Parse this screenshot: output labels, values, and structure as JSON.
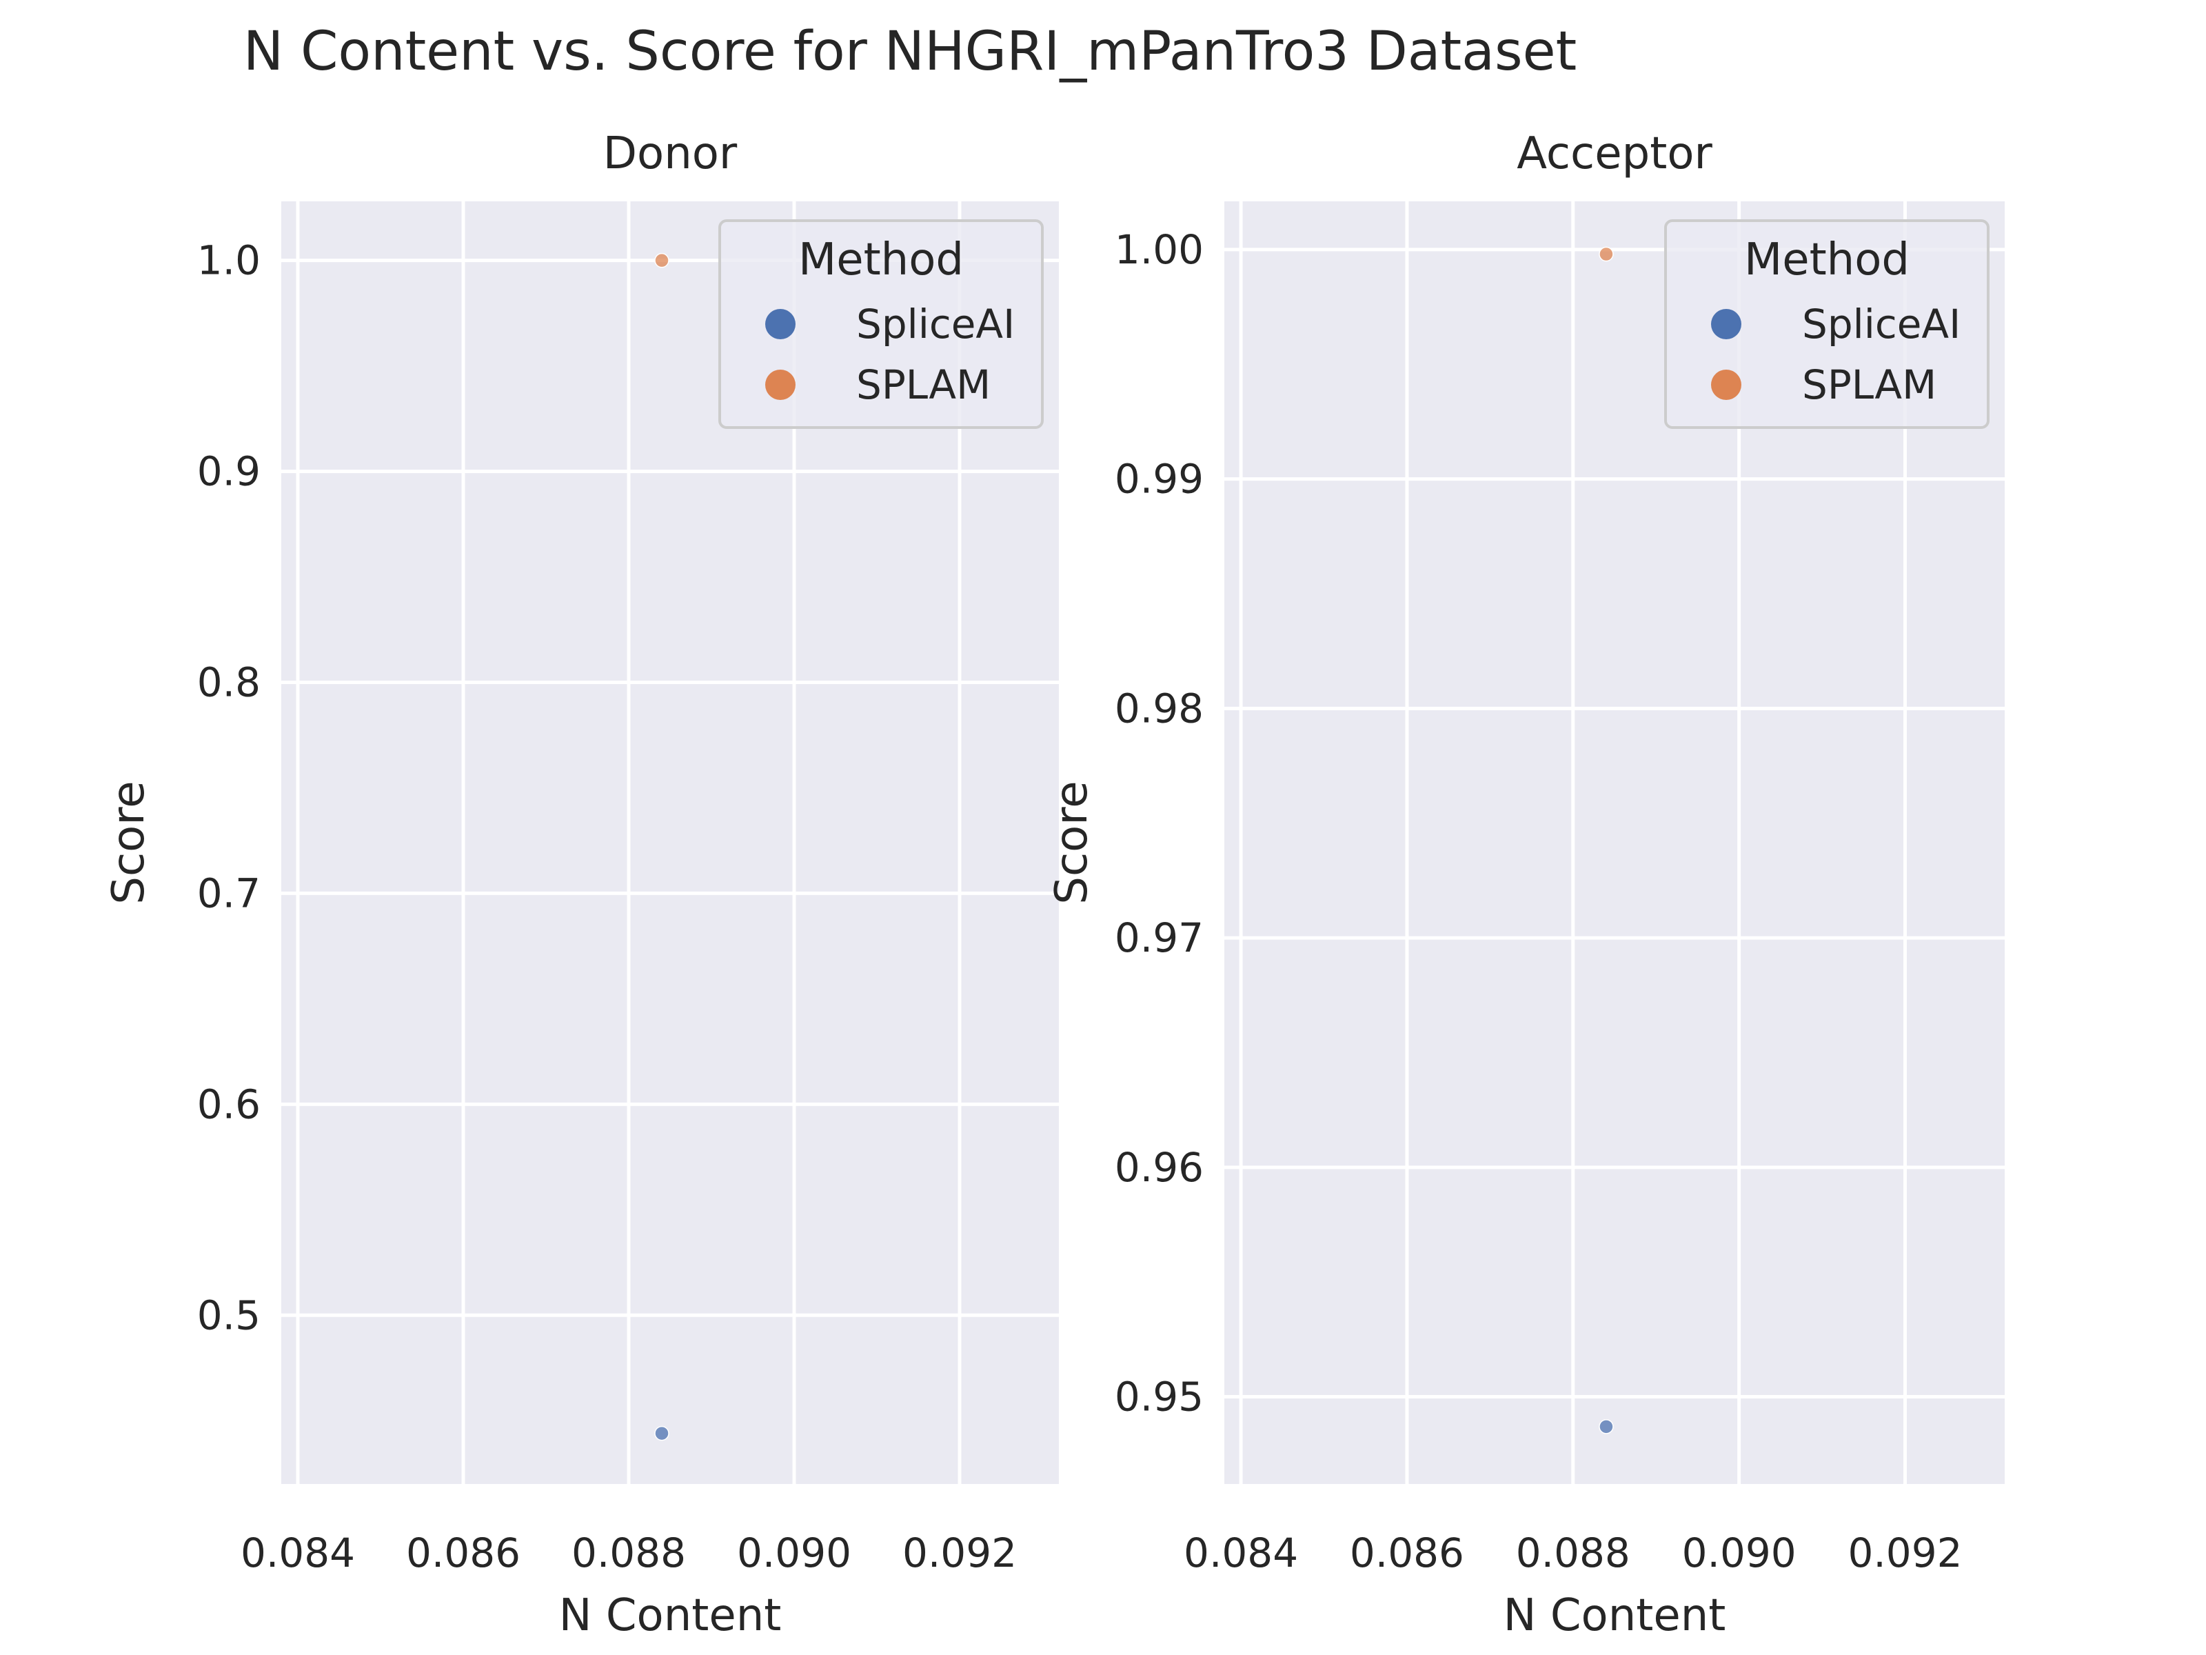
{
  "title": "N Content vs. Score for NHGRI_mPanTro3 Dataset",
  "chart_data": [
    {
      "type": "scatter",
      "subtitle": "Donor",
      "xlabel": "N Content",
      "ylabel": "Score",
      "xlim": [
        0.0838,
        0.0932
      ],
      "ylim": [
        0.42,
        1.028
      ],
      "xticks": [
        0.084,
        0.086,
        0.088,
        0.09,
        0.092
      ],
      "xtick_labels": [
        "0.084",
        "0.086",
        "0.088",
        "0.090",
        "0.092"
      ],
      "yticks": [
        0.5,
        0.6,
        0.7,
        0.8,
        0.9,
        1.0
      ],
      "ytick_labels": [
        "0.5",
        "0.6",
        "0.7",
        "0.8",
        "0.9",
        "1.0"
      ],
      "grid": true,
      "legend": {
        "title": "Method",
        "placement": "top-right"
      },
      "series": [
        {
          "name": "SpliceAI",
          "color": "#4c72b0",
          "points": [
            {
              "x": 0.0884,
              "y": 0.444
            }
          ]
        },
        {
          "name": "SPLAM",
          "color": "#dd8452",
          "points": [
            {
              "x": 0.0884,
              "y": 1.0
            }
          ]
        }
      ]
    },
    {
      "type": "scatter",
      "subtitle": "Acceptor",
      "xlabel": "N Content",
      "ylabel": "Score",
      "xlim": [
        0.0838,
        0.0932
      ],
      "ylim": [
        0.9462,
        1.0021
      ],
      "xticks": [
        0.084,
        0.086,
        0.088,
        0.09,
        0.092
      ],
      "xtick_labels": [
        "0.084",
        "0.086",
        "0.088",
        "0.090",
        "0.092"
      ],
      "yticks": [
        0.95,
        0.96,
        0.97,
        0.98,
        0.99,
        1.0
      ],
      "ytick_labels": [
        "0.95",
        "0.96",
        "0.97",
        "0.98",
        "0.99",
        "1.00"
      ],
      "grid": true,
      "legend": {
        "title": "Method",
        "placement": "top-right"
      },
      "series": [
        {
          "name": "SpliceAI",
          "color": "#4c72b0",
          "points": [
            {
              "x": 0.0884,
              "y": 0.9487
            }
          ]
        },
        {
          "name": "SPLAM",
          "color": "#dd8452",
          "points": [
            {
              "x": 0.0884,
              "y": 0.9998
            }
          ]
        }
      ]
    }
  ]
}
